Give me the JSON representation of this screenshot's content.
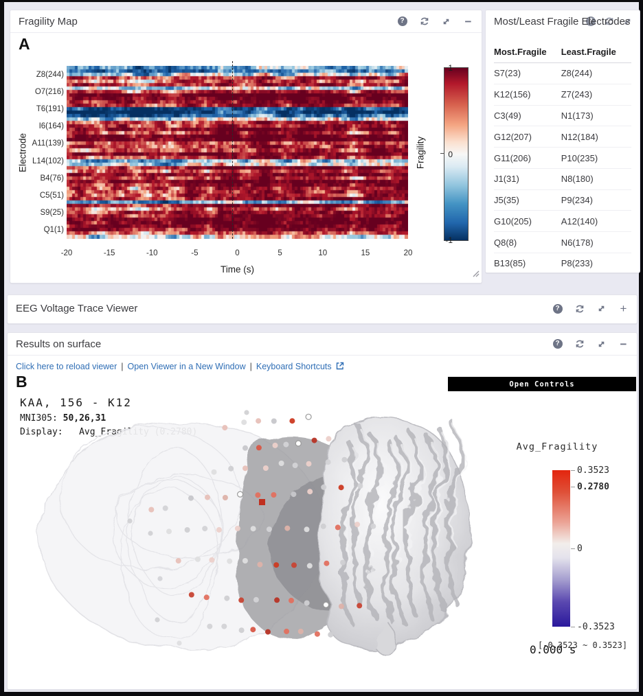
{
  "accent_colors": {
    "link_blue": "#2f6eb5",
    "icon_gray": "#6e7486",
    "panel_bg": "#ffffff",
    "page_bg": "#e9e9f2",
    "hot_red": "#b2182b",
    "cold_blue": "#053061"
  },
  "icons": {
    "help": "circled question mark",
    "refresh": "circular arrows",
    "expand": "diagonal resize arrows",
    "collapse": "minus sign",
    "open": "plus sign",
    "external_link": "box with arrow",
    "resize_grip": "double diagonal lines"
  },
  "fragility_panel": {
    "title": "Fragility Map",
    "section_label": "A"
  },
  "chart_data": [
    {
      "type": "heatmap",
      "title": "Fragility Map",
      "xlabel": "Time (s)",
      "ylabel": "Electrode",
      "x_ticks": [
        "-20",
        "-15",
        "-10",
        "-5",
        "0",
        "5",
        "10",
        "15",
        "20"
      ],
      "x_range": [
        -20,
        20
      ],
      "y_ticks": [
        "Z8(244)",
        "O7(216)",
        "T6(191)",
        "I6(164)",
        "A11(139)",
        "L14(102)",
        "B4(76)",
        "C5(51)",
        "S9(25)",
        "Q1(1)"
      ],
      "event_marker": {
        "x": 0,
        "style": "vertical dashed line"
      },
      "colorbar": {
        "label": "Fragility",
        "ticks": [
          "1",
          "0",
          "-1"
        ],
        "range": [
          -1,
          1
        ],
        "palette": "red-white-blue (RdBu reversed)"
      },
      "grid": false,
      "note": "dense per-electrode fragility raster; mostly warm red rows with several strongly blue electrode bands (near Z8/O7 top rows, around I6, and scattered thin bands lower)"
    },
    {
      "type": "colorbar",
      "title": "Avg_Fragility",
      "ticks": [
        0.3523,
        0.278,
        0,
        -0.3523
      ],
      "tick_labels": [
        "0.3523",
        "0.2780",
        "0",
        "-0.3523"
      ],
      "current_value": 0.278,
      "range": [
        -0.3523,
        0.3523
      ],
      "palette": "red-white-indigo"
    }
  ],
  "electrode_table": {
    "title": "Most/Least Fragile Electrodes",
    "columns": [
      "Most.Fragile",
      "Least.Fragile"
    ],
    "rows": [
      [
        "S7(23)",
        "Z8(244)"
      ],
      [
        "K12(156)",
        "Z7(243)"
      ],
      [
        "C3(49)",
        "N1(173)"
      ],
      [
        "G12(207)",
        "N12(184)"
      ],
      [
        "G11(206)",
        "P10(235)"
      ],
      [
        "J1(31)",
        "N8(180)"
      ],
      [
        "J5(35)",
        "P9(234)"
      ],
      [
        "G10(205)",
        "A12(140)"
      ],
      [
        "Q8(8)",
        "N6(178)"
      ],
      [
        "B13(85)",
        "P8(233)"
      ]
    ]
  },
  "eeg_panel": {
    "title": "EEG Voltage Trace Viewer"
  },
  "surface_panel": {
    "title": "Results on surface",
    "section_label": "B",
    "links": [
      "Click here to reload viewer",
      "Open Viewer in a New Window",
      "Keyboard Shortcuts"
    ],
    "open_controls_label": "Open Controls",
    "electrode_info": {
      "line1": "KAA, 156 - K12",
      "mni_label": "MNI305:",
      "mni_value": "50,26,31",
      "display_label": "Display:",
      "display_value": "Avg_Fragility (0.2780)"
    },
    "colorbar_title": "Avg_Fragility",
    "colorbar_ticks": [
      "0.3523",
      "0.2780",
      "0",
      "-0.3523"
    ],
    "range_text": "[-0.3523 ~ 0.3523]",
    "time_text": "0.000 s"
  }
}
